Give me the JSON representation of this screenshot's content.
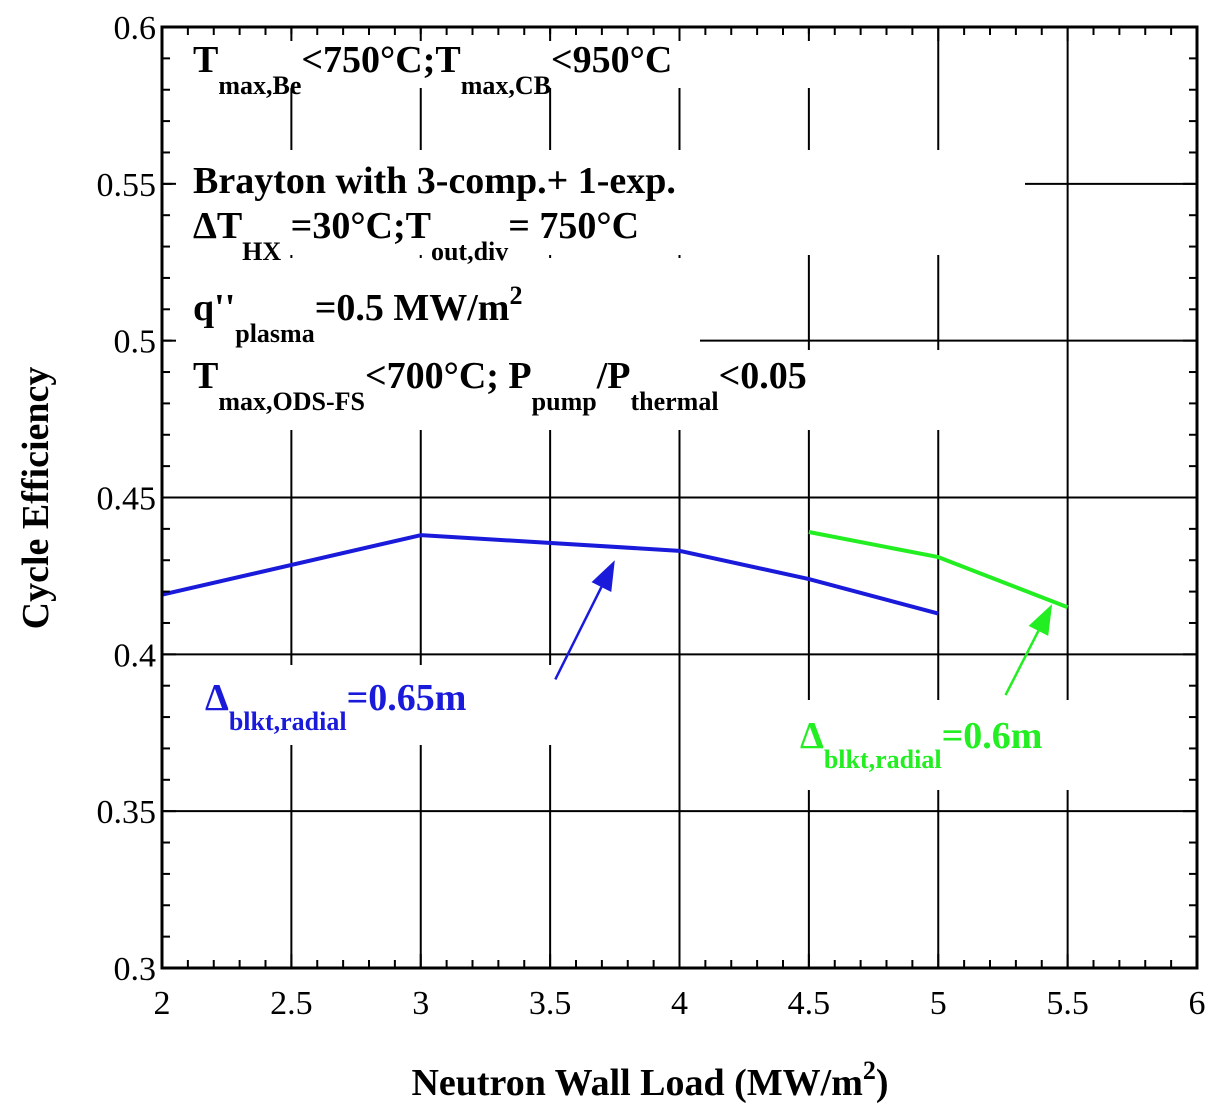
{
  "chart_data": {
    "type": "line",
    "xlabel": "Neutron Wall Load (MW/m",
    "xlabel_sup": "2",
    "xlabel_tail": ")",
    "ylabel": "Cycle Efficiency",
    "xlim": [
      2,
      6
    ],
    "ylim": [
      0.3,
      0.6
    ],
    "x_ticks": [
      2,
      2.5,
      3,
      3.5,
      4,
      4.5,
      5,
      5.5,
      6
    ],
    "x_tick_labels": [
      "2",
      "2.5",
      "3",
      "3.5",
      "4",
      "4.5",
      "5",
      "5.5",
      "6"
    ],
    "y_ticks": [
      0.3,
      0.35,
      0.4,
      0.45,
      0.5,
      0.55,
      0.6
    ],
    "y_tick_labels": [
      "0.3",
      "0.35",
      "0.4",
      "0.45",
      "0.5",
      "0.55",
      "0.6"
    ],
    "grid": true,
    "series": [
      {
        "name": "Δblkt,radial=0.65m",
        "label_parts": {
          "main": "Δ",
          "sub": "blkt,radial",
          "tail": "=0.65m"
        },
        "color": "#1a1adb",
        "x": [
          2,
          3,
          4,
          4.5,
          5
        ],
        "y": [
          0.419,
          0.438,
          0.433,
          0.424,
          0.413
        ]
      },
      {
        "name": "Δblkt,radial=0.6m",
        "label_parts": {
          "main": "Δ",
          "sub": "blkt,radial",
          "tail": "=0.6m"
        },
        "color": "#22ee22",
        "x": [
          4.5,
          5,
          5.5
        ],
        "y": [
          0.439,
          0.431,
          0.415
        ]
      }
    ],
    "annotations": [
      {
        "parts": [
          {
            "t": "T",
            "s": "n"
          },
          {
            "t": "max,Be",
            "s": "sub"
          },
          {
            "t": "<750°C;T",
            "s": "n"
          },
          {
            "t": "max,CB",
            "s": "sub"
          },
          {
            "t": "<950°C",
            "s": "n"
          }
        ]
      },
      {
        "parts": [
          {
            "t": "Brayton with 3-comp.+ 1-exp.",
            "s": "n"
          }
        ]
      },
      {
        "parts": [
          {
            "t": "ΔT",
            "s": "n"
          },
          {
            "t": "HX",
            "s": "sub"
          },
          {
            "t": " =30°C;T",
            "s": "n"
          },
          {
            "t": "out,div",
            "s": "sub"
          },
          {
            "t": "= 750°C",
            "s": "n"
          }
        ]
      },
      {
        "parts": [
          {
            "t": "q''",
            "s": "n"
          },
          {
            "t": "plasma",
            "s": "sub"
          },
          {
            "t": "=0.5 MW/m",
            "s": "n"
          },
          {
            "t": "2",
            "s": "sup"
          }
        ]
      },
      {
        "parts": [
          {
            "t": "T",
            "s": "n"
          },
          {
            "t": "max,ODS-FS",
            "s": "sub"
          },
          {
            "t": "<700°C; P",
            "s": "n"
          },
          {
            "t": "pump",
            "s": "sub"
          },
          {
            "t": "/P",
            "s": "n"
          },
          {
            "t": "thermal",
            "s": "sub"
          },
          {
            "t": "<0.05",
            "s": "n"
          }
        ]
      }
    ],
    "arrows": [
      {
        "series": 0,
        "from": [
          3.52,
          0.392
        ],
        "to": [
          3.75,
          0.43
        ]
      },
      {
        "series": 1,
        "from": [
          5.26,
          0.387
        ],
        "to": [
          5.44,
          0.416
        ]
      }
    ]
  }
}
